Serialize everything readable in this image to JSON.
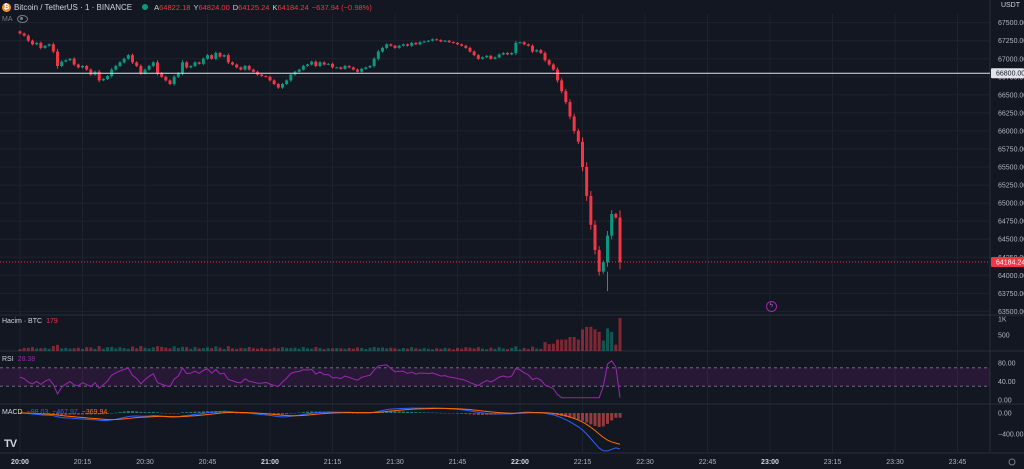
{
  "header": {
    "symbol": "Bitcoin / TetherUS · 1 · BINANCE",
    "open_label": "A",
    "open": "64822.18",
    "high_label": "Y",
    "high": "64824.00",
    "low_label": "D",
    "low": "64125.24",
    "close_label": "K",
    "close": "64184.24",
    "change": "−637.94 (−0.98%)"
  },
  "indicator_ma": "MA",
  "currency": "USDT",
  "volume_pane": {
    "label": "Hacim · BTC",
    "value": "179"
  },
  "rsi_pane": {
    "label": "RSI",
    "value": "28.38"
  },
  "macd_pane": {
    "label": "MACD",
    "v1": "−98.03",
    "v2": "−467.97",
    "v3": "−369.94"
  },
  "colors": {
    "up": "#089981",
    "down": "#f23645",
    "bg": "#131722",
    "grid": "#1e222d",
    "rsi": "#9c27b0",
    "macd": "#2962ff",
    "signal": "#ff6d00"
  },
  "price_axis": {
    "labels": [
      "67500.00",
      "67250.00",
      "67000.00",
      "66750.00",
      "66500.00",
      "66250.00",
      "66000.00",
      "65750.00",
      "65500.00",
      "65250.00",
      "65000.00",
      "64750.00",
      "64500.00",
      "64250.00",
      "64000.00",
      "63750.00",
      "63500.00"
    ],
    "values": [
      67500,
      67250,
      67000,
      66750,
      66500,
      66250,
      66000,
      65750,
      65500,
      65250,
      65000,
      64750,
      64500,
      64250,
      64000,
      63750,
      63500
    ],
    "marker_white": {
      "label": "66800.00",
      "value": 66800
    },
    "marker_price": {
      "label": "64184.24",
      "value": 64184.24
    }
  },
  "volume_axis": {
    "labels": [
      "1K",
      "500"
    ],
    "values": [
      1000,
      500
    ]
  },
  "rsi_axis": {
    "labels": [
      "80.00",
      "40.00",
      "0.00"
    ],
    "values": [
      80,
      40,
      0
    ]
  },
  "macd_axis": {
    "labels": [
      "0.00",
      "−400.00"
    ],
    "values": [
      0,
      -400
    ]
  },
  "time_axis": {
    "labels": [
      "20:00",
      "20:15",
      "20:30",
      "20:45",
      "21:00",
      "21:15",
      "21:30",
      "21:45",
      "22:00",
      "22:15",
      "22:30",
      "22:45",
      "23:00",
      "23:15",
      "23:30",
      "23:45"
    ],
    "bold": [
      true,
      false,
      false,
      false,
      true,
      false,
      false,
      false,
      true,
      false,
      false,
      false,
      true,
      false,
      false,
      false
    ]
  },
  "chart_data": {
    "type": "candlestick",
    "interval": "1m",
    "start_time": "20:00",
    "ylim": [
      63450,
      67620
    ],
    "series_close_path": [
      67350,
      67320,
      67250,
      67200,
      67220,
      67150,
      67180,
      67200,
      67100,
      66900,
      66960,
      66980,
      67000,
      66920,
      66880,
      66900,
      66850,
      66780,
      66820,
      66700,
      66720,
      66760,
      66850,
      66900,
      66950,
      67000,
      67050,
      66950,
      66900,
      66800,
      66850,
      66900,
      66950,
      66800,
      66750,
      66700,
      66650,
      66750,
      66800,
      66950,
      66880,
      66900,
      66950,
      66930,
      67000,
      67050,
      67000,
      67080,
      67030,
      67050,
      66950,
      66920,
      66880,
      66850,
      66900,
      66850,
      66820,
      66780,
      66760,
      66750,
      66700,
      66650,
      66600,
      66650,
      66700,
      66780,
      66820,
      66850,
      66900,
      66920,
      66960,
      66900,
      66950,
      66920,
      66930,
      66880,
      66880,
      66860,
      66900,
      66880,
      66850,
      66820,
      66860,
      66880,
      66900,
      67000,
      67100,
      67150,
      67200,
      67180,
      67150,
      67180,
      67200,
      67180,
      67220,
      67200,
      67230,
      67240,
      67250,
      67270,
      67260,
      67240,
      67250,
      67230,
      67220,
      67200,
      67180,
      67150,
      67100,
      67050,
      67000,
      67020,
      67040,
      67000,
      67020,
      67060,
      67080,
      67060,
      67080,
      67220,
      67230,
      67200,
      67180,
      67100,
      67120,
      67080,
      66980,
      66920,
      66850,
      66700,
      66550,
      66400,
      66200,
      66000,
      65850,
      65500,
      65100,
      64700,
      64350,
      64050,
      64180,
      64550,
      64850,
      64800,
      64184
    ]
  }
}
